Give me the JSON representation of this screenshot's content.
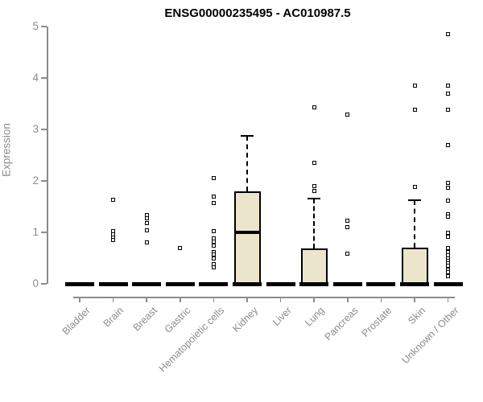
{
  "chart_data": {
    "type": "boxplot",
    "title": "ENSG00000235495 - AC010987.5",
    "ylabel": "Expression",
    "xlabel": "",
    "ylim": [
      0,
      5
    ],
    "yticks": [
      0,
      1,
      2,
      3,
      4,
      5
    ],
    "grid": false,
    "legend": "none",
    "axis_color": "#8c8c8c",
    "box_fill": "#ebe5cb",
    "box_border": "#000000",
    "marker": "open-square",
    "categories": [
      "Bladder",
      "Brain",
      "Breast",
      "Gastric",
      "Hematopoietic cells",
      "Kidney",
      "Liver",
      "Lung",
      "Pancreas",
      "Prostate",
      "Skin",
      "Unknown / Other"
    ],
    "series": [
      {
        "label": "Bladder",
        "q1": 0,
        "median": 0,
        "q3": 0,
        "whisker_low": 0,
        "whisker_high": 0,
        "outliers": []
      },
      {
        "label": "Brain",
        "q1": 0,
        "median": 0,
        "q3": 0,
        "whisker_low": 0,
        "whisker_high": 0,
        "outliers": [
          1.63,
          1.02,
          0.96,
          0.9,
          0.85
        ]
      },
      {
        "label": "Breast",
        "q1": 0,
        "median": 0,
        "q3": 0,
        "whisker_low": 0,
        "whisker_high": 0,
        "outliers": [
          1.33,
          1.27,
          1.18,
          1.04,
          0.8
        ]
      },
      {
        "label": "Gastric",
        "q1": 0,
        "median": 0,
        "q3": 0,
        "whisker_low": 0,
        "whisker_high": 0,
        "outliers": [
          0.7
        ]
      },
      {
        "label": "Hematopoietic cells",
        "q1": 0,
        "median": 0,
        "q3": 0,
        "whisker_low": 0,
        "whisker_high": 0,
        "outliers": [
          2.05,
          1.7,
          1.57,
          1.03,
          0.88,
          0.82,
          0.75,
          0.62,
          0.57,
          0.49,
          0.39,
          0.32
        ]
      },
      {
        "label": "Kidney",
        "q1": 0,
        "median": 1.0,
        "q3": 1.8,
        "whisker_low": 0,
        "whisker_high": 2.88,
        "outliers": []
      },
      {
        "label": "Liver",
        "q1": 0,
        "median": 0,
        "q3": 0,
        "whisker_low": 0,
        "whisker_high": 0,
        "outliers": []
      },
      {
        "label": "Lung",
        "q1": 0,
        "median": 0,
        "q3": 0.68,
        "whisker_low": 0,
        "whisker_high": 1.65,
        "outliers": [
          3.43,
          2.35,
          1.9,
          1.8
        ]
      },
      {
        "label": "Pancreas",
        "q1": 0,
        "median": 0,
        "q3": 0,
        "whisker_low": 0,
        "whisker_high": 0,
        "outliers": [
          3.29,
          1.23,
          1.1,
          0.58
        ]
      },
      {
        "label": "Prostate",
        "q1": 0,
        "median": 0,
        "q3": 0,
        "whisker_low": 0,
        "whisker_high": 0,
        "outliers": []
      },
      {
        "label": "Skin",
        "q1": 0,
        "median": 0,
        "q3": 0.7,
        "whisker_low": 0,
        "whisker_high": 1.63,
        "outliers": [
          3.85,
          3.39,
          1.88
        ]
      },
      {
        "label": "Unknown / Other",
        "q1": 0,
        "median": 0,
        "q3": 0,
        "whisker_low": 0,
        "whisker_high": 0,
        "outliers": [
          4.85,
          3.85,
          3.69,
          3.39,
          2.7,
          1.96,
          1.86,
          1.62,
          1.35,
          1.3,
          1.0,
          0.92,
          0.7,
          0.62,
          0.55,
          0.5,
          0.45,
          0.4,
          0.35,
          0.28,
          0.22,
          0.15
        ]
      }
    ]
  }
}
